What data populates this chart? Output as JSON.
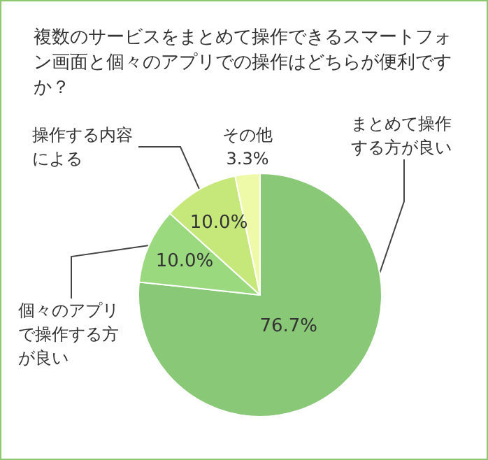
{
  "chart_data": {
    "type": "pie",
    "title": "複数のサービスをまとめて操作できるスマートフォン画面と個々のアプリでの操作はどちらが便利ですか？",
    "categories": [
      "まとめて操作する方が良い",
      "個々のアプリで操作する方が良い",
      "操作する内容による",
      "その他"
    ],
    "values": [
      76.7,
      10.0,
      10.0,
      3.3
    ],
    "value_labels": [
      "76.7%",
      "10.0%",
      "10.0%",
      "3.3%"
    ],
    "colors": [
      "#88c876",
      "#9bd97f",
      "#c6e87a",
      "#eefaa8"
    ],
    "legend": false
  }
}
